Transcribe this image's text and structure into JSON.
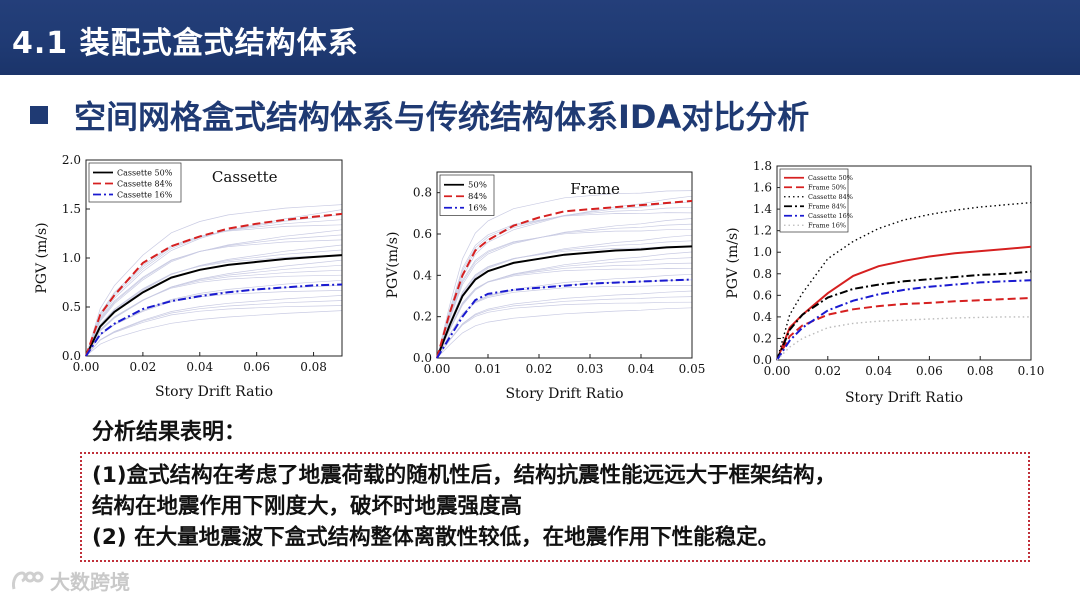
{
  "header": {
    "title": "4.1 装配式盒式结构体系"
  },
  "subtitle": "空间网格盒式结构体系与传统结构体系IDA对比分析",
  "results": {
    "label": "分析结果表明：",
    "lines": [
      "(1)盒式结构在考虑了地震荷载的随机性后，结构抗震性能远远大于框架结构，",
      "结构在地震作用下刚度大，破坏时地震强度高",
      "(2) 在大量地震波下盒式结构整体离散性较低，在地震作用下性能稳定。"
    ]
  },
  "watermark": {
    "text": "大数跨境",
    "icon": "logo-icon"
  },
  "chart_data": [
    {
      "type": "line",
      "title": "Cassette",
      "xlabel": "Story Drift Ratio",
      "ylabel": "PGV (m/s)",
      "xlim": [
        0,
        0.09
      ],
      "ylim": [
        0,
        2.0
      ],
      "xticks": [
        0.0,
        0.02,
        0.04,
        0.06,
        0.08
      ],
      "xtick_labels": [
        "0.00",
        "0.02",
        "0.04",
        "0.06",
        "0.08"
      ],
      "yticks": [
        0,
        0.5,
        1.0,
        1.5,
        2.0
      ],
      "ytick_labels": [
        "0.0",
        "0.5",
        "1.0",
        "1.5",
        "2.0"
      ],
      "legend_position": "top-left",
      "background_curves": true,
      "series": [
        {
          "name": "Cassette 50%",
          "color": "#000000",
          "style": "solid",
          "x": [
            0,
            0.005,
            0.01,
            0.02,
            0.03,
            0.04,
            0.05,
            0.06,
            0.07,
            0.08,
            0.09
          ],
          "y": [
            0,
            0.3,
            0.45,
            0.65,
            0.8,
            0.88,
            0.93,
            0.96,
            0.99,
            1.01,
            1.03
          ]
        },
        {
          "name": "Cassette 84%",
          "color": "#d62020",
          "style": "dashed",
          "x": [
            0,
            0.005,
            0.01,
            0.02,
            0.03,
            0.04,
            0.05,
            0.06,
            0.07,
            0.08,
            0.09
          ],
          "y": [
            0,
            0.42,
            0.62,
            0.95,
            1.12,
            1.22,
            1.3,
            1.35,
            1.39,
            1.42,
            1.45
          ]
        },
        {
          "name": "Cassette 16%",
          "color": "#1a1ad0",
          "style": "dashdot",
          "x": [
            0,
            0.005,
            0.01,
            0.02,
            0.03,
            0.04,
            0.05,
            0.06,
            0.07,
            0.08,
            0.09
          ],
          "y": [
            0,
            0.22,
            0.33,
            0.48,
            0.56,
            0.61,
            0.65,
            0.68,
            0.7,
            0.72,
            0.73
          ]
        }
      ]
    },
    {
      "type": "line",
      "title": "Frame",
      "xlabel": "Story Drift Ratio",
      "ylabel": "PGV(m/s)",
      "xlim": [
        0,
        0.05
      ],
      "ylim": [
        0,
        0.9
      ],
      "xticks": [
        0.0,
        0.01,
        0.02,
        0.03,
        0.04,
        0.05
      ],
      "xtick_labels": [
        "0.00",
        "0.01",
        "0.02",
        "0.03",
        "0.04",
        "0.05"
      ],
      "yticks": [
        0,
        0.2,
        0.4,
        0.6,
        0.8
      ],
      "ytick_labels": [
        "0.0",
        "0.2",
        "0.4",
        "0.6",
        "0.8"
      ],
      "legend_position": "top-left",
      "background_curves": true,
      "series": [
        {
          "name": "50%",
          "color": "#000000",
          "style": "solid",
          "x": [
            0,
            0.0025,
            0.005,
            0.0075,
            0.01,
            0.015,
            0.02,
            0.025,
            0.03,
            0.035,
            0.04,
            0.045,
            0.05
          ],
          "y": [
            0,
            0.16,
            0.3,
            0.38,
            0.42,
            0.46,
            0.48,
            0.5,
            0.51,
            0.52,
            0.525,
            0.535,
            0.54
          ]
        },
        {
          "name": "84%",
          "color": "#d62020",
          "style": "dashed",
          "x": [
            0,
            0.0025,
            0.005,
            0.0075,
            0.01,
            0.015,
            0.02,
            0.025,
            0.03,
            0.035,
            0.04,
            0.045,
            0.05
          ],
          "y": [
            0,
            0.22,
            0.4,
            0.52,
            0.57,
            0.64,
            0.68,
            0.71,
            0.72,
            0.73,
            0.74,
            0.75,
            0.76
          ]
        },
        {
          "name": "16%",
          "color": "#1a1ad0",
          "style": "dashdot",
          "x": [
            0,
            0.0025,
            0.005,
            0.0075,
            0.01,
            0.015,
            0.02,
            0.025,
            0.03,
            0.035,
            0.04,
            0.045,
            0.05
          ],
          "y": [
            0,
            0.1,
            0.2,
            0.28,
            0.31,
            0.33,
            0.34,
            0.35,
            0.36,
            0.365,
            0.37,
            0.375,
            0.38
          ]
        }
      ]
    },
    {
      "type": "line",
      "title": "",
      "xlabel": "Story Drift Ratio",
      "ylabel": "PGV (m/s)",
      "xlim": [
        0,
        0.1
      ],
      "ylim": [
        0,
        1.8
      ],
      "xticks": [
        0.0,
        0.02,
        0.04,
        0.06,
        0.08,
        0.1
      ],
      "xtick_labels": [
        "0.00",
        "0.02",
        "0.04",
        "0.06",
        "0.08",
        "0.10"
      ],
      "yticks": [
        0,
        0.2,
        0.4,
        0.6,
        0.8,
        1.0,
        1.2,
        1.4,
        1.6,
        1.8
      ],
      "ytick_labels": [
        "0.0",
        "0.2",
        "0.4",
        "0.6",
        "0.8",
        "1.0",
        "1.2",
        "1.4",
        "1.6",
        "1.8"
      ],
      "legend_position": "top-left",
      "background_curves": false,
      "series": [
        {
          "name": "Cassette 50%",
          "color": "#d62020",
          "style": "solid",
          "x": [
            0,
            0.005,
            0.01,
            0.02,
            0.03,
            0.04,
            0.05,
            0.06,
            0.07,
            0.08,
            0.09,
            0.1
          ],
          "y": [
            0,
            0.3,
            0.42,
            0.62,
            0.78,
            0.87,
            0.92,
            0.96,
            0.99,
            1.01,
            1.03,
            1.05
          ]
        },
        {
          "name": "Frame 50%",
          "color": "#d62020",
          "style": "dashed",
          "x": [
            0,
            0.005,
            0.01,
            0.02,
            0.03,
            0.04,
            0.05,
            0.06,
            0.07,
            0.08,
            0.09,
            0.1
          ],
          "y": [
            0,
            0.22,
            0.32,
            0.42,
            0.47,
            0.5,
            0.52,
            0.53,
            0.545,
            0.555,
            0.565,
            0.575
          ]
        },
        {
          "name": "Cassette 84%",
          "color": "#000000",
          "style": "dotted",
          "x": [
            0,
            0.005,
            0.01,
            0.02,
            0.03,
            0.04,
            0.05,
            0.06,
            0.07,
            0.08,
            0.09,
            0.1
          ],
          "y": [
            0,
            0.42,
            0.62,
            0.94,
            1.1,
            1.22,
            1.3,
            1.35,
            1.39,
            1.42,
            1.44,
            1.46
          ]
        },
        {
          "name": "Frame 84%",
          "color": "#000000",
          "style": "dashdot",
          "x": [
            0,
            0.005,
            0.01,
            0.02,
            0.03,
            0.04,
            0.05,
            0.06,
            0.07,
            0.08,
            0.09,
            0.1
          ],
          "y": [
            0,
            0.28,
            0.42,
            0.58,
            0.66,
            0.7,
            0.73,
            0.75,
            0.77,
            0.79,
            0.8,
            0.82
          ]
        },
        {
          "name": "Cassette 16%",
          "color": "#1a1ad0",
          "style": "dashdot",
          "x": [
            0,
            0.005,
            0.01,
            0.02,
            0.03,
            0.04,
            0.05,
            0.06,
            0.07,
            0.08,
            0.09,
            0.1
          ],
          "y": [
            0,
            0.18,
            0.3,
            0.46,
            0.55,
            0.61,
            0.65,
            0.68,
            0.7,
            0.72,
            0.73,
            0.74
          ]
        },
        {
          "name": "Frame 16%",
          "color": "#bbbbbb",
          "style": "dotted",
          "x": [
            0,
            0.005,
            0.01,
            0.02,
            0.03,
            0.04,
            0.05,
            0.06,
            0.07,
            0.08,
            0.09,
            0.1
          ],
          "y": [
            0,
            0.12,
            0.2,
            0.3,
            0.34,
            0.36,
            0.37,
            0.38,
            0.39,
            0.395,
            0.4,
            0.4
          ]
        }
      ]
    }
  ]
}
